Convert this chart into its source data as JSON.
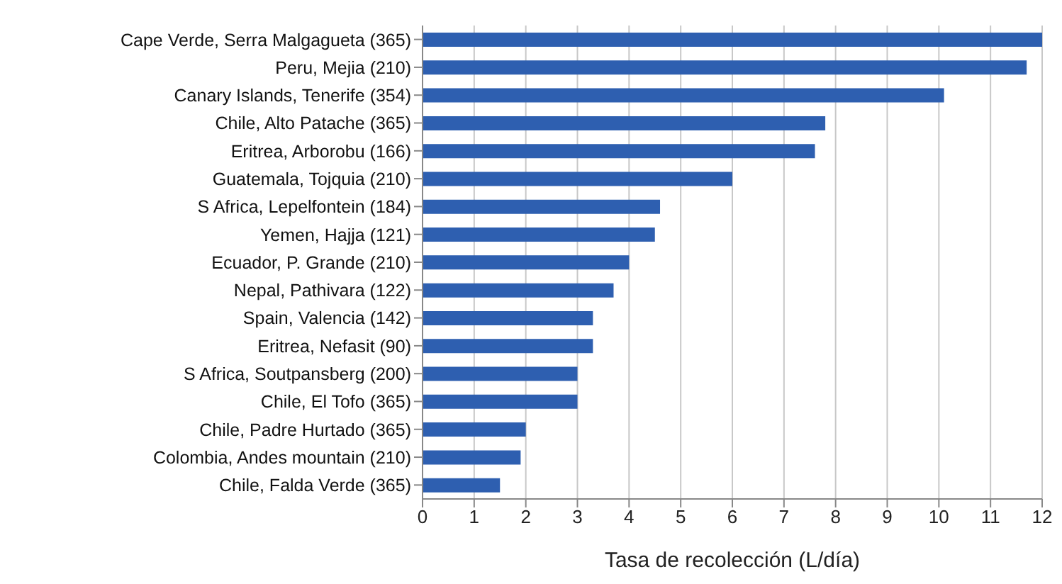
{
  "chart_data": {
    "type": "bar",
    "orientation": "horizontal",
    "xlabel": "Tasa de recolección (L/día)",
    "categories": [
      "Cape Verde, Serra Malgagueta (365)",
      "Peru, Mejia (210)",
      "Canary Islands, Tenerife (354)",
      "Chile, Alto Patache (365)",
      "Eritrea, Arborobu (166)",
      "Guatemala, Tojquia (210)",
      "S Africa, Lepelfontein (184)",
      "Yemen, Hajja (121)",
      "Ecuador, P. Grande (210)",
      "Nepal, Pathivara (122)",
      "Spain, Valencia (142)",
      "Eritrea, Nefasit (90)",
      "S Africa, Soutpansberg (200)",
      "Chile, El Tofo (365)",
      "Chile, Padre Hurtado (365)",
      "Colombia, Andes mountain (210)",
      "Chile, Falda Verde (365)"
    ],
    "values": [
      12,
      11.7,
      10.1,
      7.8,
      7.6,
      6.0,
      4.6,
      4.5,
      4.0,
      3.7,
      3.3,
      3.3,
      3.0,
      3.0,
      2.0,
      1.9,
      1.5
    ],
    "color": "#2e5fb0",
    "xlim": [
      0,
      12
    ],
    "xticks": [
      0,
      1,
      2,
      3,
      4,
      5,
      6,
      7,
      8,
      9,
      10,
      11,
      12
    ],
    "grid": "x"
  }
}
